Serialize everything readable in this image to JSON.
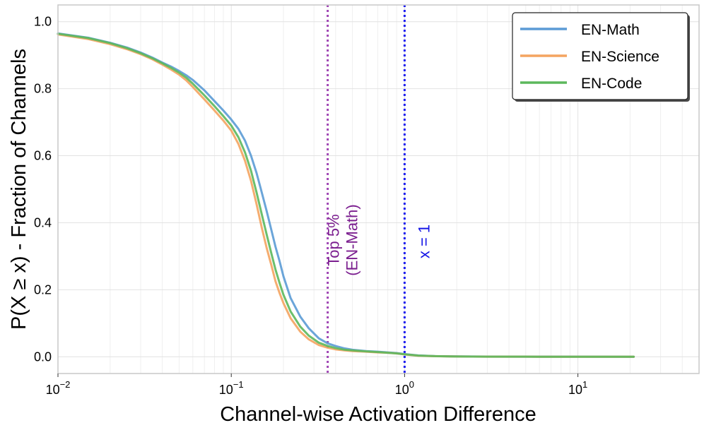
{
  "chart_data": {
    "type": "line",
    "title": "",
    "xlabel": "Channel-wise Activation Difference",
    "ylabel": "P(X ≥ x) - Fraction of Channels",
    "xscale": "log",
    "xlim": [
      0.01,
      50
    ],
    "ylim": [
      -0.05,
      1.05
    ],
    "grid": true,
    "legend_position": "top-right",
    "x_ticks": [
      {
        "value": 0.01,
        "base": "10",
        "exp": "−2"
      },
      {
        "value": 0.1,
        "base": "10",
        "exp": "−1"
      },
      {
        "value": 1,
        "base": "10",
        "exp": "0"
      },
      {
        "value": 10,
        "base": "10",
        "exp": "1"
      }
    ],
    "y_ticks": [
      {
        "value": 0.0,
        "label": "0.0"
      },
      {
        "value": 0.2,
        "label": "0.2"
      },
      {
        "value": 0.4,
        "label": "0.4"
      },
      {
        "value": 0.6,
        "label": "0.6"
      },
      {
        "value": 0.8,
        "label": "0.8"
      },
      {
        "value": 1.0,
        "label": "1.0"
      }
    ],
    "series": [
      {
        "name": "EN-Math",
        "color": "#5b9bd5",
        "x": [
          0.01,
          0.015,
          0.02,
          0.025,
          0.03,
          0.035,
          0.04,
          0.045,
          0.05,
          0.055,
          0.06,
          0.07,
          0.08,
          0.09,
          0.1,
          0.11,
          0.12,
          0.13,
          0.14,
          0.15,
          0.16,
          0.17,
          0.18,
          0.19,
          0.2,
          0.22,
          0.25,
          0.28,
          0.32,
          0.36,
          0.4,
          0.45,
          0.5,
          0.6,
          0.7,
          0.8,
          0.9,
          1.0,
          1.2,
          1.5,
          2.0,
          3.0,
          5.0,
          10.0,
          21.0
        ],
        "y": [
          0.965,
          0.952,
          0.937,
          0.923,
          0.908,
          0.893,
          0.878,
          0.866,
          0.853,
          0.84,
          0.826,
          0.795,
          0.763,
          0.735,
          0.708,
          0.68,
          0.645,
          0.6,
          0.548,
          0.49,
          0.435,
          0.38,
          0.328,
          0.285,
          0.24,
          0.175,
          0.12,
          0.085,
          0.055,
          0.04,
          0.032,
          0.025,
          0.021,
          0.017,
          0.015,
          0.013,
          0.011,
          0.008,
          0.004,
          0.002,
          0.001,
          0.0005,
          0.0003,
          0.0002,
          0.0001
        ]
      },
      {
        "name": "EN-Science",
        "color": "#f4a460",
        "x": [
          0.01,
          0.015,
          0.02,
          0.025,
          0.03,
          0.035,
          0.04,
          0.045,
          0.05,
          0.055,
          0.06,
          0.07,
          0.08,
          0.09,
          0.1,
          0.11,
          0.12,
          0.13,
          0.14,
          0.15,
          0.16,
          0.17,
          0.18,
          0.19,
          0.2,
          0.22,
          0.25,
          0.28,
          0.32,
          0.36,
          0.4,
          0.45,
          0.5,
          0.6,
          0.7,
          0.8,
          0.9,
          1.0,
          1.2,
          1.5,
          2.0,
          3.0,
          5.0,
          10.0,
          21.0
        ],
        "y": [
          0.962,
          0.948,
          0.933,
          0.918,
          0.903,
          0.888,
          0.872,
          0.857,
          0.842,
          0.825,
          0.805,
          0.768,
          0.735,
          0.705,
          0.675,
          0.635,
          0.585,
          0.525,
          0.455,
          0.385,
          0.325,
          0.275,
          0.225,
          0.19,
          0.16,
          0.115,
          0.075,
          0.052,
          0.035,
          0.027,
          0.022,
          0.019,
          0.017,
          0.015,
          0.013,
          0.012,
          0.01,
          0.007,
          0.003,
          0.0015,
          0.0008,
          0.0004,
          0.0002,
          0.0001,
          0.0001
        ]
      },
      {
        "name": "EN-Code",
        "color": "#5cb85c",
        "x": [
          0.01,
          0.015,
          0.02,
          0.025,
          0.03,
          0.035,
          0.04,
          0.045,
          0.05,
          0.055,
          0.06,
          0.07,
          0.08,
          0.09,
          0.1,
          0.11,
          0.12,
          0.13,
          0.14,
          0.15,
          0.16,
          0.17,
          0.18,
          0.19,
          0.2,
          0.22,
          0.25,
          0.28,
          0.32,
          0.36,
          0.4,
          0.45,
          0.5,
          0.6,
          0.7,
          0.8,
          0.9,
          1.0,
          1.2,
          1.5,
          2.0,
          3.0,
          5.0,
          10.0,
          21.0
        ],
        "y": [
          0.964,
          0.951,
          0.936,
          0.921,
          0.906,
          0.891,
          0.876,
          0.862,
          0.848,
          0.833,
          0.815,
          0.78,
          0.748,
          0.718,
          0.69,
          0.655,
          0.61,
          0.555,
          0.49,
          0.425,
          0.365,
          0.31,
          0.26,
          0.22,
          0.185,
          0.135,
          0.09,
          0.063,
          0.042,
          0.032,
          0.026,
          0.021,
          0.019,
          0.016,
          0.014,
          0.012,
          0.01,
          0.0075,
          0.0035,
          0.0018,
          0.0009,
          0.0004,
          0.0002,
          0.0001,
          0.0001
        ]
      }
    ],
    "annotations": [
      {
        "x": 0.36,
        "label_lines": [
          "Top 5%",
          "(EN-Math)"
        ],
        "color": "#7b1e8f",
        "line_color": "#a046b4",
        "style": "dotted"
      },
      {
        "x": 1.0,
        "label_lines": [
          "x = 1"
        ],
        "color": "#1515e6",
        "line_color": "#2020f0",
        "style": "dotted"
      }
    ]
  }
}
